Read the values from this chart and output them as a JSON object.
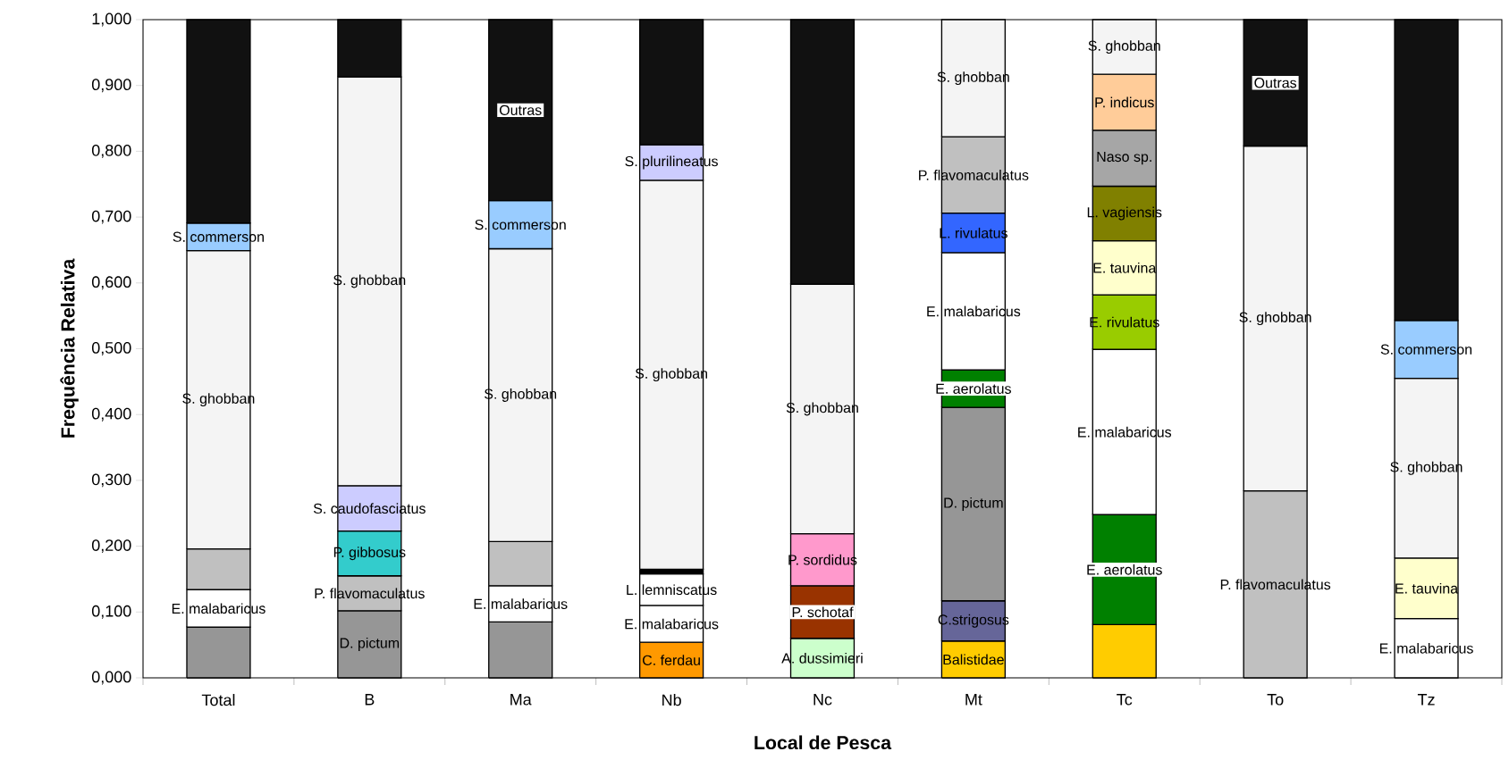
{
  "chart_data": {
    "type": "bar",
    "stacked": true,
    "xlabel": "Local de Pesca",
    "ylabel": "Frequência Relativa",
    "categories": [
      "Total",
      "B",
      "Ma",
      "Nb",
      "Nc",
      "Mt",
      "Tc",
      "To",
      "Tz"
    ],
    "ylim": [
      0,
      1
    ],
    "yticks": [
      {
        "value": 0,
        "label": "0,000"
      },
      {
        "value": 0.1,
        "label": "0,100"
      },
      {
        "value": 0.2,
        "label": "0,200"
      },
      {
        "value": 0.3,
        "label": "0,300"
      },
      {
        "value": 0.4,
        "label": "0,400"
      },
      {
        "value": 0.5,
        "label": "0,500"
      },
      {
        "value": 0.6,
        "label": "0,600"
      },
      {
        "value": 0.7,
        "label": "0,700"
      },
      {
        "value": 0.8,
        "label": "0,800"
      },
      {
        "value": 0.9,
        "label": "0,900"
      },
      {
        "value": 1,
        "label": "1,000"
      }
    ],
    "series": [
      {
        "color": "#ffcc00",
        "values": [
          null,
          null,
          null,
          null,
          null,
          0.056,
          0.081,
          null,
          null
        ],
        "value_labels": [
          null,
          null,
          null,
          null,
          null,
          "Balistidae",
          null,
          null,
          null
        ]
      },
      {
        "color": "#666699",
        "values": [
          null,
          null,
          null,
          null,
          null,
          0.061,
          null,
          null,
          null
        ],
        "value_labels": [
          null,
          null,
          null,
          null,
          null,
          "C.strigosus",
          null,
          null,
          null
        ]
      },
      {
        "color": "#ff9900",
        "values": [
          null,
          null,
          null,
          0.054,
          null,
          null,
          null,
          null,
          null
        ],
        "value_labels": [
          null,
          null,
          null,
          "C. ferdau",
          null,
          null,
          null,
          null,
          null
        ]
      },
      {
        "color": "#ccffcc",
        "values": [
          null,
          null,
          null,
          null,
          0.06,
          null,
          null,
          null,
          null
        ],
        "value_labels": [
          null,
          null,
          null,
          null,
          "A. dussimieri",
          null,
          null,
          null,
          null
        ]
      },
      {
        "color": "#993300",
        "values": [
          null,
          null,
          null,
          null,
          0.08,
          null,
          null,
          null,
          null
        ],
        "value_labels": [
          null,
          null,
          null,
          null,
          "P. schotaf",
          null,
          null,
          null,
          null
        ]
      },
      {
        "color": "#ff99cc",
        "values": [
          null,
          null,
          null,
          null,
          0.079,
          null,
          null,
          null,
          null
        ],
        "value_labels": [
          null,
          null,
          null,
          null,
          "P. sordidus",
          null,
          null,
          null,
          null
        ]
      },
      {
        "color": "#969696",
        "values": [
          0.077,
          0.102,
          0.085,
          null,
          null,
          0.294,
          null,
          null,
          null
        ],
        "value_labels": [
          null,
          "D. pictum",
          null,
          null,
          null,
          "D. pictum",
          null,
          null,
          null
        ]
      },
      {
        "color": "#008000",
        "values": [
          null,
          null,
          null,
          null,
          null,
          0.057,
          0.167,
          null,
          null
        ],
        "value_labels": [
          null,
          null,
          null,
          null,
          null,
          "E. aerolatus",
          "E. aerolatus",
          null,
          null
        ]
      },
      {
        "color": "#ffffff",
        "values": [
          0.057,
          null,
          0.055,
          0.056,
          null,
          0.178,
          0.251,
          null,
          0.09
        ],
        "value_labels": [
          "E. malabaricus",
          null,
          "E. malabaricus",
          "E. malabaricus",
          null,
          "E. malabaricus",
          "E. malabaricus",
          null,
          "E. malabaricus"
        ]
      },
      {
        "color": "#ffffff",
        "values": [
          null,
          null,
          null,
          0.048,
          null,
          null,
          null,
          null,
          null
        ],
        "value_labels": [
          null,
          null,
          null,
          "L. lemniscatus",
          null,
          null,
          null,
          null,
          null
        ]
      },
      {
        "color": "#000000",
        "values": [
          null,
          null,
          null,
          0.007,
          null,
          null,
          null,
          null,
          null
        ]
      },
      {
        "color": "#3366ff",
        "values": [
          null,
          null,
          null,
          null,
          null,
          0.06,
          null,
          null,
          null
        ],
        "value_labels": [
          null,
          null,
          null,
          null,
          null,
          "L. rivulatus",
          null,
          null,
          null
        ]
      },
      {
        "color": "#c0c0c0",
        "values": [
          0.062,
          0.053,
          0.067,
          null,
          null,
          0.116,
          null,
          0.284,
          null
        ],
        "value_labels": [
          null,
          "P. flavomaculatus",
          null,
          null,
          null,
          "P. flavomaculatus",
          null,
          "P. flavomaculatus",
          null
        ]
      },
      {
        "color": "#33cccc",
        "values": [
          null,
          0.068,
          null,
          null,
          null,
          null,
          null,
          null,
          null
        ],
        "value_labels": [
          null,
          "P. gibbosus",
          null,
          null,
          null,
          null,
          null,
          null,
          null
        ]
      },
      {
        "color": "#ccccff",
        "values": [
          null,
          0.069,
          null,
          null,
          null,
          null,
          null,
          null,
          null
        ],
        "value_labels": [
          null,
          "S. caudofasciatus",
          null,
          null,
          null,
          null,
          null,
          null,
          null
        ]
      },
      {
        "color": "#99cc00",
        "values": [
          null,
          null,
          null,
          null,
          null,
          null,
          0.083,
          null,
          null
        ],
        "value_labels": [
          null,
          null,
          null,
          null,
          null,
          null,
          "E. rivulatus",
          null,
          null
        ]
      },
      {
        "color": "#ffffcc",
        "values": [
          null,
          null,
          null,
          null,
          null,
          null,
          0.082,
          null,
          0.092
        ],
        "value_labels": [
          null,
          null,
          null,
          null,
          null,
          null,
          "E. tauvina",
          null,
          "E. tauvina"
        ]
      },
      {
        "color": "#808000",
        "values": [
          null,
          null,
          null,
          null,
          null,
          null,
          0.083,
          null,
          null
        ],
        "value_labels": [
          null,
          null,
          null,
          null,
          null,
          null,
          "L. vagiensis",
          null,
          null
        ]
      },
      {
        "color": "#a6a6a6",
        "values": [
          null,
          null,
          null,
          null,
          null,
          null,
          0.085,
          null,
          null
        ],
        "value_labels": [
          null,
          null,
          null,
          null,
          null,
          null,
          "Naso sp.",
          null,
          null
        ]
      },
      {
        "color": "#ffcc99",
        "values": [
          null,
          null,
          null,
          null,
          null,
          null,
          0.085,
          null,
          null
        ],
        "value_labels": [
          null,
          null,
          null,
          null,
          null,
          null,
          "P. indicus",
          null,
          null
        ]
      },
      {
        "color": "#f4f4f4",
        "values": [
          0.453,
          0.621,
          0.445,
          0.591,
          0.379,
          0.178,
          0.083,
          0.524,
          0.273
        ],
        "value_labels": [
          "S. ghobban",
          "S. ghobban",
          "S. ghobban",
          "S. ghobban",
          "S. ghobban",
          "S. ghobban",
          "S. ghobban",
          "S. ghobban",
          "S. ghobban"
        ]
      },
      {
        "color": "#ccccff",
        "values": [
          null,
          null,
          null,
          0.054,
          null,
          null,
          null,
          null,
          null
        ],
        "value_labels": [
          null,
          null,
          null,
          "S. plurilineatus",
          null,
          null,
          null,
          null,
          null
        ]
      },
      {
        "color": "#99ccff",
        "values": [
          0.042,
          null,
          0.073,
          null,
          null,
          null,
          null,
          null,
          0.088
        ],
        "value_labels": [
          "S. commerson",
          null,
          "S. commerson",
          null,
          null,
          null,
          null,
          null,
          "S. commerson"
        ]
      },
      {
        "color": "#111111",
        "values": [
          0.309,
          0.087,
          0.275,
          0.19,
          0.402,
          null,
          null,
          0.192,
          0.457
        ],
        "value_labels": [
          null,
          null,
          "Outras",
          null,
          null,
          null,
          null,
          "Outras",
          null
        ]
      }
    ]
  }
}
